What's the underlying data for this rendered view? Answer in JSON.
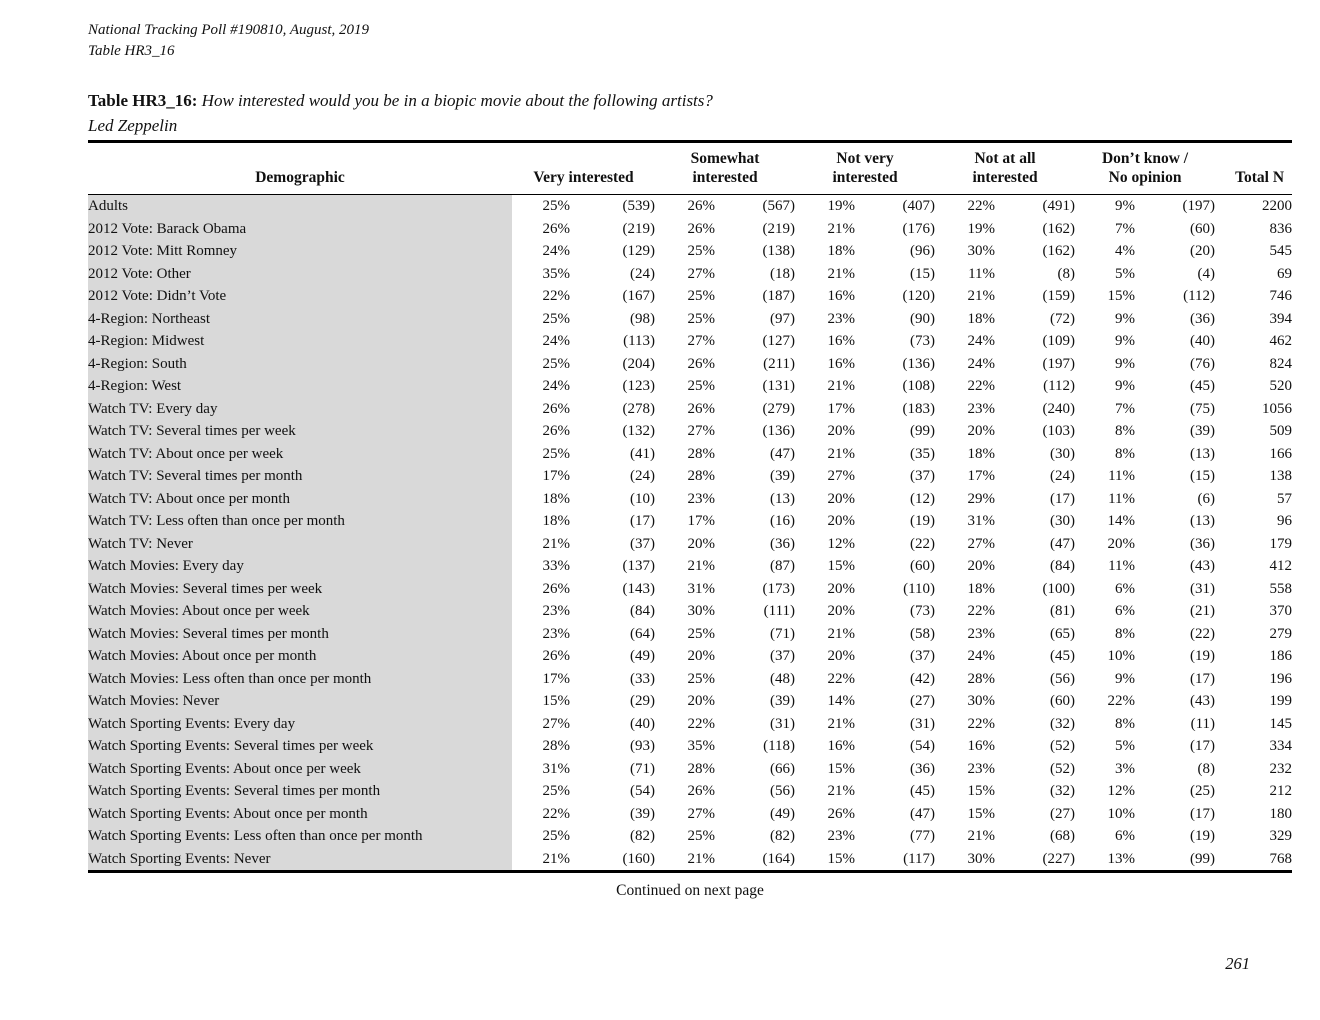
{
  "header": {
    "meta_line1": "National Tracking Poll #190810, August, 2019",
    "meta_line2": "Table HR3_16",
    "title_label": "Table HR3_16:",
    "title_question": "How interested would you be in a biopic movie about the following artists?",
    "title_subject": "Led Zeppelin"
  },
  "footer": {
    "continued": "Continued on next page",
    "page_number": "261"
  },
  "table": {
    "columns": [
      {
        "name": "demographic",
        "lines": [
          "Demographic"
        ],
        "span": 1
      },
      {
        "name": "very-interested",
        "lines": [
          "Very interested"
        ],
        "span": 2
      },
      {
        "name": "somewhat-interested",
        "lines": [
          "Somewhat",
          "interested"
        ],
        "span": 2
      },
      {
        "name": "not-very-interested",
        "lines": [
          "Not very",
          "interested"
        ],
        "span": 2
      },
      {
        "name": "not-at-all-interested",
        "lines": [
          "Not at all",
          "interested"
        ],
        "span": 2
      },
      {
        "name": "dont-know-no-opinion",
        "lines": [
          "Don’t know /",
          "No opinion"
        ],
        "span": 2
      },
      {
        "name": "total-n",
        "lines": [
          "Total N"
        ],
        "span": 1
      }
    ],
    "rows": [
      [
        "Adults",
        "25%",
        "(539)",
        "26%",
        "(567)",
        "19%",
        "(407)",
        "22%",
        "(491)",
        "9%",
        "(197)",
        "2200"
      ],
      [
        "2012 Vote: Barack Obama",
        "26%",
        "(219)",
        "26%",
        "(219)",
        "21%",
        "(176)",
        "19%",
        "(162)",
        "7%",
        "(60)",
        "836"
      ],
      [
        "2012 Vote: Mitt Romney",
        "24%",
        "(129)",
        "25%",
        "(138)",
        "18%",
        "(96)",
        "30%",
        "(162)",
        "4%",
        "(20)",
        "545"
      ],
      [
        "2012 Vote: Other",
        "35%",
        "(24)",
        "27%",
        "(18)",
        "21%",
        "(15)",
        "11%",
        "(8)",
        "5%",
        "(4)",
        "69"
      ],
      [
        "2012 Vote: Didn’t Vote",
        "22%",
        "(167)",
        "25%",
        "(187)",
        "16%",
        "(120)",
        "21%",
        "(159)",
        "15%",
        "(112)",
        "746"
      ],
      [
        "4-Region: Northeast",
        "25%",
        "(98)",
        "25%",
        "(97)",
        "23%",
        "(90)",
        "18%",
        "(72)",
        "9%",
        "(36)",
        "394"
      ],
      [
        "4-Region: Midwest",
        "24%",
        "(113)",
        "27%",
        "(127)",
        "16%",
        "(73)",
        "24%",
        "(109)",
        "9%",
        "(40)",
        "462"
      ],
      [
        "4-Region: South",
        "25%",
        "(204)",
        "26%",
        "(211)",
        "16%",
        "(136)",
        "24%",
        "(197)",
        "9%",
        "(76)",
        "824"
      ],
      [
        "4-Region: West",
        "24%",
        "(123)",
        "25%",
        "(131)",
        "21%",
        "(108)",
        "22%",
        "(112)",
        "9%",
        "(45)",
        "520"
      ],
      [
        "Watch TV: Every day",
        "26%",
        "(278)",
        "26%",
        "(279)",
        "17%",
        "(183)",
        "23%",
        "(240)",
        "7%",
        "(75)",
        "1056"
      ],
      [
        "Watch TV: Several times per week",
        "26%",
        "(132)",
        "27%",
        "(136)",
        "20%",
        "(99)",
        "20%",
        "(103)",
        "8%",
        "(39)",
        "509"
      ],
      [
        "Watch TV: About once per week",
        "25%",
        "(41)",
        "28%",
        "(47)",
        "21%",
        "(35)",
        "18%",
        "(30)",
        "8%",
        "(13)",
        "166"
      ],
      [
        "Watch TV: Several times per month",
        "17%",
        "(24)",
        "28%",
        "(39)",
        "27%",
        "(37)",
        "17%",
        "(24)",
        "11%",
        "(15)",
        "138"
      ],
      [
        "Watch TV: About once per month",
        "18%",
        "(10)",
        "23%",
        "(13)",
        "20%",
        "(12)",
        "29%",
        "(17)",
        "11%",
        "(6)",
        "57"
      ],
      [
        "Watch TV: Less often than once per month",
        "18%",
        "(17)",
        "17%",
        "(16)",
        "20%",
        "(19)",
        "31%",
        "(30)",
        "14%",
        "(13)",
        "96"
      ],
      [
        "Watch TV: Never",
        "21%",
        "(37)",
        "20%",
        "(36)",
        "12%",
        "(22)",
        "27%",
        "(47)",
        "20%",
        "(36)",
        "179"
      ],
      [
        "Watch Movies: Every day",
        "33%",
        "(137)",
        "21%",
        "(87)",
        "15%",
        "(60)",
        "20%",
        "(84)",
        "11%",
        "(43)",
        "412"
      ],
      [
        "Watch Movies: Several times per week",
        "26%",
        "(143)",
        "31%",
        "(173)",
        "20%",
        "(110)",
        "18%",
        "(100)",
        "6%",
        "(31)",
        "558"
      ],
      [
        "Watch Movies: About once per week",
        "23%",
        "(84)",
        "30%",
        "(111)",
        "20%",
        "(73)",
        "22%",
        "(81)",
        "6%",
        "(21)",
        "370"
      ],
      [
        "Watch Movies: Several times per month",
        "23%",
        "(64)",
        "25%",
        "(71)",
        "21%",
        "(58)",
        "23%",
        "(65)",
        "8%",
        "(22)",
        "279"
      ],
      [
        "Watch Movies: About once per month",
        "26%",
        "(49)",
        "20%",
        "(37)",
        "20%",
        "(37)",
        "24%",
        "(45)",
        "10%",
        "(19)",
        "186"
      ],
      [
        "Watch Movies: Less often than once per month",
        "17%",
        "(33)",
        "25%",
        "(48)",
        "22%",
        "(42)",
        "28%",
        "(56)",
        "9%",
        "(17)",
        "196"
      ],
      [
        "Watch Movies: Never",
        "15%",
        "(29)",
        "20%",
        "(39)",
        "14%",
        "(27)",
        "30%",
        "(60)",
        "22%",
        "(43)",
        "199"
      ],
      [
        "Watch Sporting Events: Every day",
        "27%",
        "(40)",
        "22%",
        "(31)",
        "21%",
        "(31)",
        "22%",
        "(32)",
        "8%",
        "(11)",
        "145"
      ],
      [
        "Watch Sporting Events: Several times per week",
        "28%",
        "(93)",
        "35%",
        "(118)",
        "16%",
        "(54)",
        "16%",
        "(52)",
        "5%",
        "(17)",
        "334"
      ],
      [
        "Watch Sporting Events: About once per week",
        "31%",
        "(71)",
        "28%",
        "(66)",
        "15%",
        "(36)",
        "23%",
        "(52)",
        "3%",
        "(8)",
        "232"
      ],
      [
        "Watch Sporting Events: Several times per month",
        "25%",
        "(54)",
        "26%",
        "(56)",
        "21%",
        "(45)",
        "15%",
        "(32)",
        "12%",
        "(25)",
        "212"
      ],
      [
        "Watch Sporting Events: About once per month",
        "22%",
        "(39)",
        "27%",
        "(49)",
        "26%",
        "(47)",
        "15%",
        "(27)",
        "10%",
        "(17)",
        "180"
      ],
      [
        "Watch Sporting Events: Less often than once per month",
        "25%",
        "(82)",
        "25%",
        "(82)",
        "23%",
        "(77)",
        "21%",
        "(68)",
        "6%",
        "(19)",
        "329"
      ],
      [
        "Watch Sporting Events: Never",
        "21%",
        "(160)",
        "21%",
        "(164)",
        "15%",
        "(117)",
        "30%",
        "(227)",
        "13%",
        "(99)",
        "768"
      ]
    ]
  }
}
